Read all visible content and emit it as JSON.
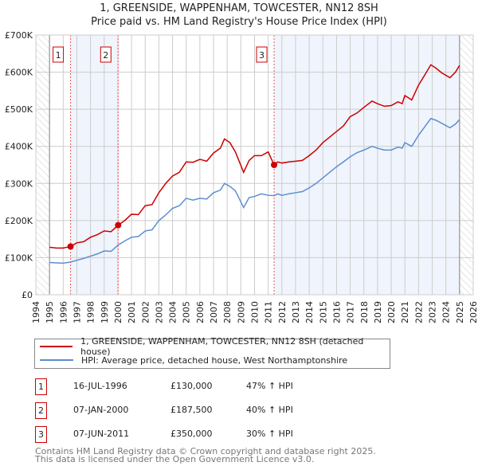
{
  "title": "1, GREENSIDE, WAPPENHAM, TOWCESTER, NN12 8SH",
  "subtitle": "Price paid vs. HM Land Registry's House Price Index (HPI)",
  "legend": [
    {
      "label": "1, GREENSIDE, WAPPENHAM, TOWCESTER, NN12 8SH (detached house)",
      "color": "#cc0000"
    },
    {
      "label": "HPI: Average price, detached house, West Northamptonshire",
      "color": "#5b8fd0"
    }
  ],
  "transactions": [
    {
      "n": "1",
      "date": "16-JUL-1996",
      "price": "£130,000",
      "hpi": "47% ↑ HPI"
    },
    {
      "n": "2",
      "date": "07-JAN-2000",
      "price": "£187,500",
      "hpi": "40% ↑ HPI"
    },
    {
      "n": "3",
      "date": "07-JUN-2011",
      "price": "£350,000",
      "hpi": "30% ↑ HPI"
    }
  ],
  "footer": [
    "Contains HM Land Registry data © Crown copyright and database right 2025.",
    "This data is licensed under the Open Government Licence v3.0."
  ],
  "chart_data": {
    "type": "line",
    "xlim": [
      1994,
      2026
    ],
    "ylim": [
      0,
      700000
    ],
    "yticks": [
      0,
      100000,
      200000,
      300000,
      400000,
      500000,
      600000,
      700000
    ],
    "ytick_labels": [
      "£0",
      "£100K",
      "£200K",
      "£300K",
      "£400K",
      "£500K",
      "£600K",
      "£700K"
    ],
    "xticks": [
      "1994",
      "1995",
      "1996",
      "1997",
      "1998",
      "1999",
      "2000",
      "2001",
      "2002",
      "2003",
      "2004",
      "2005",
      "2006",
      "2007",
      "2008",
      "2009",
      "2010",
      "2011",
      "2012",
      "2013",
      "2014",
      "2015",
      "2016",
      "2017",
      "2018",
      "2019",
      "2020",
      "2021",
      "2022",
      "2023",
      "2024",
      "2025",
      "2026"
    ],
    "grid": true,
    "hatched_ranges": [
      [
        1994,
        1995
      ],
      [
        2025,
        2026
      ]
    ],
    "shaded_ranges": [
      [
        1996.54,
        2000.02
      ],
      [
        2011.43,
        2025
      ]
    ],
    "markers": [
      {
        "label": "1",
        "x": 1996.54,
        "y": 130000
      },
      {
        "label": "2",
        "x": 2000.02,
        "y": 187500
      },
      {
        "label": "3",
        "x": 2011.43,
        "y": 350000
      }
    ],
    "series": [
      {
        "name": "price_paid",
        "color": "#cc0000",
        "x": [
          1995,
          1995.5,
          1996,
          1996.54,
          1997,
          1997.5,
          1998,
          1998.5,
          1999,
          1999.5,
          2000.02,
          2000.5,
          2001,
          2001.5,
          2002,
          2002.5,
          2003,
          2003.5,
          2004,
          2004.5,
          2005,
          2005.5,
          2006,
          2006.5,
          2007,
          2007.5,
          2007.8,
          2008.2,
          2008.6,
          2009.2,
          2009.6,
          2010,
          2010.5,
          2011,
          2011.43,
          2011.7,
          2012,
          2012.5,
          2013,
          2013.5,
          2014,
          2014.5,
          2015,
          2015.5,
          2016,
          2016.5,
          2017,
          2017.5,
          2018,
          2018.6,
          2019,
          2019.5,
          2020,
          2020.5,
          2020.8,
          2021,
          2021.5,
          2022,
          2022.5,
          2022.9,
          2023.3,
          2023.7,
          2024.3,
          2024.7,
          2025
        ],
        "y": [
          128000,
          126000,
          126000,
          130000,
          140000,
          143000,
          155000,
          162000,
          172000,
          170000,
          187500,
          200000,
          217000,
          216000,
          240000,
          243000,
          275000,
          300000,
          320000,
          330000,
          358000,
          357000,
          365000,
          360000,
          382000,
          395000,
          420000,
          410000,
          385000,
          330000,
          362000,
          375000,
          375000,
          385000,
          350000,
          358000,
          355000,
          358000,
          360000,
          362000,
          375000,
          390000,
          410000,
          425000,
          440000,
          455000,
          480000,
          490000,
          505000,
          522000,
          515000,
          508000,
          510000,
          520000,
          515000,
          537000,
          525000,
          565000,
          595000,
          620000,
          610000,
          598000,
          585000,
          600000,
          618000
        ]
      },
      {
        "name": "hpi",
        "color": "#5b8fd0",
        "x": [
          1995,
          1995.5,
          1996,
          1996.54,
          1997,
          1997.5,
          1998,
          1998.5,
          1999,
          1999.5,
          2000.02,
          2000.5,
          2001,
          2001.5,
          2002,
          2002.5,
          2003,
          2003.5,
          2004,
          2004.5,
          2005,
          2005.5,
          2006,
          2006.5,
          2007,
          2007.5,
          2007.8,
          2008.2,
          2008.6,
          2009.2,
          2009.6,
          2010,
          2010.5,
          2011,
          2011.43,
          2011.7,
          2012,
          2012.5,
          2013,
          2013.5,
          2014,
          2014.5,
          2015,
          2015.5,
          2016,
          2016.5,
          2017,
          2017.5,
          2018,
          2018.6,
          2019,
          2019.5,
          2020,
          2020.5,
          2020.8,
          2021,
          2021.5,
          2022,
          2022.5,
          2022.9,
          2023.3,
          2023.7,
          2024.3,
          2024.7,
          2025
        ],
        "y": [
          87000,
          86000,
          85000,
          88000,
          93000,
          98000,
          104000,
          110000,
          118000,
          117000,
          134000,
          145000,
          155000,
          157000,
          172000,
          175000,
          200000,
          215000,
          233000,
          240000,
          260000,
          255000,
          260000,
          258000,
          275000,
          282000,
          300000,
          292000,
          280000,
          235000,
          262000,
          265000,
          272000,
          268000,
          267000,
          272000,
          268000,
          272000,
          275000,
          278000,
          288000,
          300000,
          315000,
          330000,
          345000,
          358000,
          372000,
          383000,
          390000,
          400000,
          395000,
          390000,
          390000,
          398000,
          395000,
          410000,
          400000,
          430000,
          455000,
          475000,
          470000,
          462000,
          450000,
          460000,
          472000
        ]
      }
    ]
  }
}
